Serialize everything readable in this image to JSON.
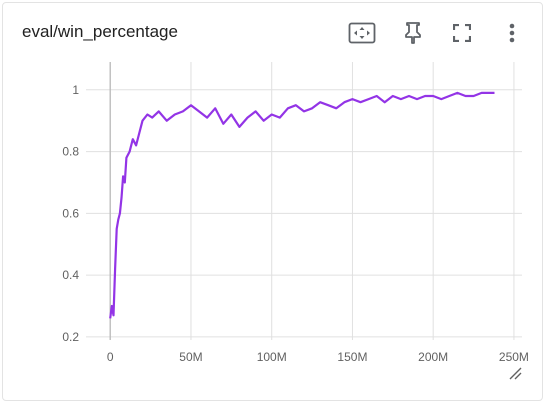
{
  "card": {
    "title": "eval/win_percentage"
  },
  "toolbar": {
    "items": [
      {
        "name": "fit-domain-icon"
      },
      {
        "name": "pin-icon"
      },
      {
        "name": "fullscreen-icon"
      },
      {
        "name": "more-vert-icon"
      }
    ]
  },
  "colors": {
    "series": "#9334e6",
    "grid": "#e0e0e0",
    "zero_axis": "#bdbdbd",
    "icon": "#5f6368"
  },
  "chart_data": {
    "type": "line",
    "title": "eval/win_percentage",
    "xlabel": "",
    "ylabel": "",
    "xlim": [
      -15000000,
      255000000
    ],
    "ylim": [
      0.19,
      1.09
    ],
    "xticks": [
      0,
      50000000,
      100000000,
      150000000,
      200000000,
      250000000
    ],
    "xtick_labels": [
      "0",
      "50M",
      "100M",
      "150M",
      "200M",
      "250M"
    ],
    "yticks": [
      0.2,
      0.4,
      0.6,
      0.8,
      1.0
    ],
    "ytick_labels": [
      "0.2",
      "0.4",
      "0.6",
      "0.8",
      "1"
    ],
    "grid": true,
    "series": [
      {
        "name": "",
        "color": "#9334e6",
        "x": [
          0,
          1000000,
          2000000,
          3000000,
          4000000,
          5000000,
          6000000,
          7000000,
          8000000,
          9000000,
          10000000,
          12000000,
          14000000,
          16000000,
          18000000,
          20000000,
          23000000,
          26000000,
          30000000,
          35000000,
          40000000,
          45000000,
          50000000,
          55000000,
          60000000,
          65000000,
          70000000,
          75000000,
          80000000,
          85000000,
          90000000,
          95000000,
          100000000,
          105000000,
          110000000,
          115000000,
          120000000,
          125000000,
          130000000,
          135000000,
          140000000,
          145000000,
          150000000,
          155000000,
          160000000,
          165000000,
          170000000,
          175000000,
          180000000,
          185000000,
          190000000,
          195000000,
          200000000,
          205000000,
          210000000,
          215000000,
          220000000,
          225000000,
          230000000,
          235000000,
          238000000
        ],
        "y": [
          0.26,
          0.3,
          0.27,
          0.42,
          0.55,
          0.58,
          0.6,
          0.65,
          0.72,
          0.7,
          0.78,
          0.8,
          0.84,
          0.82,
          0.86,
          0.9,
          0.92,
          0.91,
          0.93,
          0.9,
          0.92,
          0.93,
          0.95,
          0.93,
          0.91,
          0.94,
          0.89,
          0.92,
          0.88,
          0.91,
          0.93,
          0.9,
          0.92,
          0.91,
          0.94,
          0.95,
          0.93,
          0.94,
          0.96,
          0.95,
          0.94,
          0.96,
          0.97,
          0.96,
          0.97,
          0.98,
          0.96,
          0.98,
          0.97,
          0.98,
          0.97,
          0.98,
          0.98,
          0.97,
          0.98,
          0.99,
          0.98,
          0.98,
          0.99,
          0.99,
          0.99
        ]
      }
    ]
  }
}
